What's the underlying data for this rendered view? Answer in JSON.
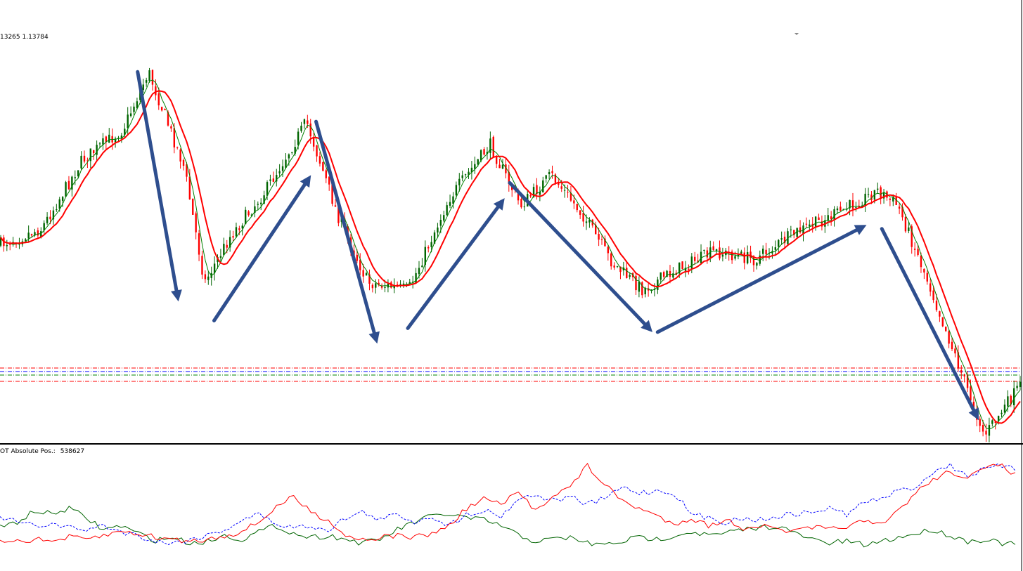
{
  "chart_window": {
    "price_info": "13265 1.13784",
    "indicator_label": "OT Absolute Pos.:",
    "indicator_value": "538627"
  },
  "colors": {
    "bull_candle": "#006400",
    "bear_candle": "#ff0000",
    "ma_fast": "#008000",
    "ma_slow": "#ff0000",
    "arrow": "#2e4e8e",
    "level_red": "#ff0000",
    "level_green": "#008000",
    "level_blue": "#0000ff",
    "cot_red": "#ff0000",
    "cot_green": "#006400",
    "cot_blue": "#0000ff"
  },
  "chart_data": [
    {
      "type": "candlestick",
      "title": "",
      "grid": false,
      "legend": "none",
      "overlays": [
        "moving-average-fast",
        "moving-average-slow"
      ],
      "price_path": [
        [
          0,
          0.5
        ],
        [
          0.04,
          0.46
        ],
        [
          0.08,
          0.28
        ],
        [
          0.12,
          0.2
        ],
        [
          0.145,
          0.05
        ],
        [
          0.18,
          0.3
        ],
        [
          0.2,
          0.6
        ],
        [
          0.225,
          0.48
        ],
        [
          0.26,
          0.36
        ],
        [
          0.3,
          0.18
        ],
        [
          0.33,
          0.42
        ],
        [
          0.36,
          0.6
        ],
        [
          0.4,
          0.62
        ],
        [
          0.44,
          0.38
        ],
        [
          0.48,
          0.24
        ],
        [
          0.51,
          0.4
        ],
        [
          0.54,
          0.32
        ],
        [
          0.57,
          0.42
        ],
        [
          0.6,
          0.55
        ],
        [
          0.63,
          0.62
        ],
        [
          0.66,
          0.57
        ],
        [
          0.7,
          0.52
        ],
        [
          0.74,
          0.54
        ],
        [
          0.78,
          0.47
        ],
        [
          0.82,
          0.42
        ],
        [
          0.86,
          0.36
        ],
        [
          0.88,
          0.4
        ],
        [
          0.91,
          0.6
        ],
        [
          0.94,
          0.82
        ],
        [
          0.965,
          1.0
        ],
        [
          1.0,
          0.87
        ]
      ],
      "horizontal_levels": [
        {
          "color": "level_red",
          "style": "dash-dot"
        },
        {
          "color": "level_blue",
          "style": "dash-dot"
        },
        {
          "color": "level_green",
          "style": "dash-dot"
        },
        {
          "color": "level_red",
          "style": "dash-dot"
        }
      ],
      "trend_arrows": [
        {
          "from": [
            0.135,
            0.05
          ],
          "to": [
            0.175,
            0.65
          ]
        },
        {
          "from": [
            0.21,
            0.7
          ],
          "to": [
            0.305,
            0.32
          ]
        },
        {
          "from": [
            0.31,
            0.18
          ],
          "to": [
            0.37,
            0.76
          ]
        },
        {
          "from": [
            0.4,
            0.72
          ],
          "to": [
            0.495,
            0.38
          ]
        },
        {
          "from": [
            0.5,
            0.34
          ],
          "to": [
            0.64,
            0.73
          ]
        },
        {
          "from": [
            0.645,
            0.73
          ],
          "to": [
            0.85,
            0.45
          ]
        },
        {
          "from": [
            0.865,
            0.46
          ],
          "to": [
            0.96,
            0.96
          ]
        }
      ]
    },
    {
      "type": "line",
      "title": "",
      "grid": false,
      "legend": "none",
      "series": [
        {
          "color": "cot_green",
          "style": "solid",
          "values": [
            0.72,
            0.66,
            0.55,
            0.58,
            0.52,
            0.62,
            0.74,
            0.7,
            0.78,
            0.85,
            0.82,
            0.88,
            0.86,
            0.8,
            0.84,
            0.76,
            0.7,
            0.78,
            0.82,
            0.8,
            0.84,
            0.88,
            0.84,
            0.74,
            0.66,
            0.6,
            0.58,
            0.62,
            0.64,
            0.7,
            0.8,
            0.86,
            0.84,
            0.82,
            0.88,
            0.9,
            0.86,
            0.82,
            0.84,
            0.8,
            0.76,
            0.8,
            0.78,
            0.74,
            0.72,
            0.7,
            0.78,
            0.84,
            0.88,
            0.86,
            0.9,
            0.86,
            0.82,
            0.78,
            0.74,
            0.8,
            0.86,
            0.84,
            0.88,
            0.9
          ]
        },
        {
          "color": "cot_blue",
          "style": "dashed",
          "values": [
            0.62,
            0.66,
            0.7,
            0.68,
            0.72,
            0.74,
            0.7,
            0.76,
            0.8,
            0.86,
            0.88,
            0.84,
            0.8,
            0.74,
            0.64,
            0.58,
            0.68,
            0.72,
            0.7,
            0.74,
            0.62,
            0.56,
            0.64,
            0.58,
            0.66,
            0.6,
            0.7,
            0.58,
            0.54,
            0.6,
            0.42,
            0.38,
            0.44,
            0.4,
            0.48,
            0.42,
            0.3,
            0.36,
            0.34,
            0.36,
            0.58,
            0.62,
            0.66,
            0.62,
            0.64,
            0.6,
            0.58,
            0.56,
            0.52,
            0.58,
            0.46,
            0.42,
            0.34,
            0.3,
            0.14,
            0.08,
            0.18,
            0.12,
            0.08,
            0.14
          ]
        },
        {
          "color": "cot_red",
          "style": "solid",
          "values": [
            0.84,
            0.86,
            0.84,
            0.86,
            0.82,
            0.84,
            0.8,
            0.76,
            0.78,
            0.82,
            0.84,
            0.86,
            0.84,
            0.8,
            0.76,
            0.66,
            0.5,
            0.4,
            0.56,
            0.64,
            0.8,
            0.84,
            0.82,
            0.8,
            0.82,
            0.78,
            0.7,
            0.52,
            0.42,
            0.48,
            0.36,
            0.54,
            0.38,
            0.3,
            0.08,
            0.28,
            0.44,
            0.52,
            0.6,
            0.68,
            0.62,
            0.7,
            0.64,
            0.72,
            0.7,
            0.74,
            0.76,
            0.72,
            0.74,
            0.7,
            0.66,
            0.7,
            0.54,
            0.36,
            0.22,
            0.14,
            0.2,
            0.12,
            0.06,
            0.22
          ]
        }
      ]
    }
  ]
}
